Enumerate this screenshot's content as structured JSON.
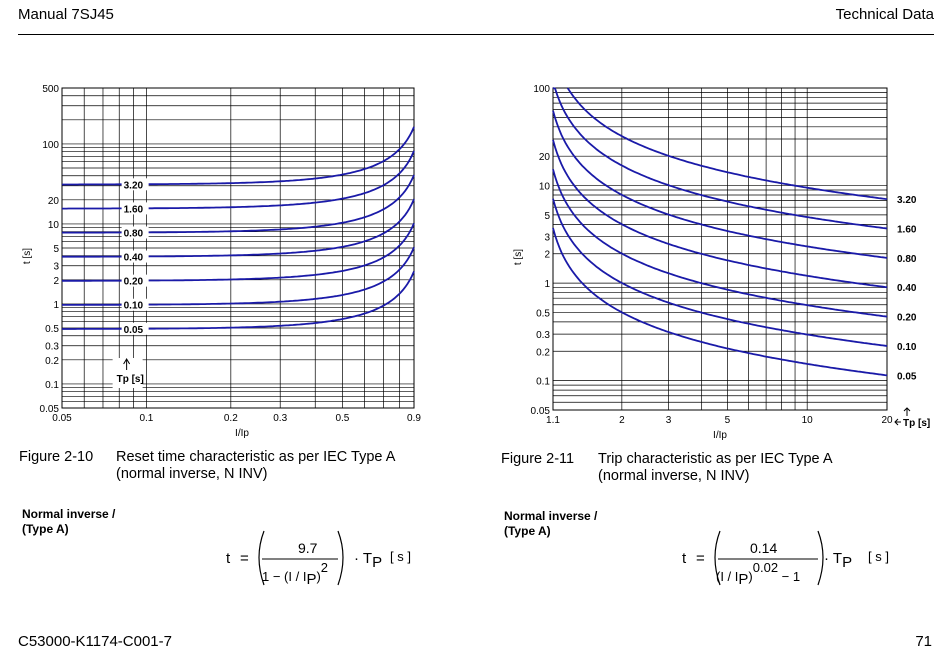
{
  "header": {
    "left": "Manual 7SJ45",
    "right": "Technical Data"
  },
  "footer": {
    "left": "C53000-K1174-C001-7",
    "right": "71"
  },
  "figures": [
    {
      "number": "Figure 2-10",
      "title_line1": "Reset time characteristic as per IEC Type A",
      "title_line2": "(normal inverse, N INV)",
      "label_line1": "Normal inverse /",
      "label_line2": "(Type A)",
      "formula": {
        "lhs": "t",
        "numerator": "9.7",
        "denominator": "1 − (I/IP)2",
        "tp": "TP",
        "unit": "[s]"
      }
    },
    {
      "number": "Figure 2-11",
      "title_line1": "Trip characteristic as per IEC Type A",
      "title_line2": "(normal inverse, N INV)",
      "label_line1": "Normal inverse /",
      "label_line2": "(Type A)",
      "formula": {
        "lhs": "t",
        "numerator": "0.14",
        "denominator": "(I/IP)0.02 − 1",
        "tp": "TP",
        "unit": "[s]"
      }
    }
  ],
  "chart_data": [
    {
      "type": "line",
      "title": "",
      "xlabel": "I/Ip",
      "ylabel": "t [s]",
      "x_scale": "log",
      "y_scale": "log",
      "xlim": [
        0.05,
        0.9
      ],
      "ylim": [
        0.05,
        500
      ],
      "x_ticks": [
        "0.05",
        "0.1",
        "0.2",
        "0.3",
        "0.5",
        "0.9"
      ],
      "y_ticks": [
        "500",
        "100",
        "20",
        "10",
        "5",
        "3",
        "2",
        "1",
        "0.5",
        "0.3",
        "0.2",
        "0.1",
        "0.05"
      ],
      "param_label": "Tp [s]",
      "grid": true,
      "formula": "t = 9.7 / (1 - (I/Ip)^2) * Tp",
      "series": [
        {
          "name": "0.05",
          "tp": 0.05
        },
        {
          "name": "0.10",
          "tp": 0.1
        },
        {
          "name": "0.20",
          "tp": 0.2
        },
        {
          "name": "0.40",
          "tp": 0.4
        },
        {
          "name": "0.80",
          "tp": 0.8
        },
        {
          "name": "1.60",
          "tp": 1.6
        },
        {
          "name": "3.20",
          "tp": 3.2
        }
      ]
    },
    {
      "type": "line",
      "title": "",
      "xlabel": "I/Ip",
      "ylabel": "t [s]",
      "x_scale": "log",
      "y_scale": "log",
      "xlim": [
        1.1,
        20
      ],
      "ylim": [
        0.05,
        100
      ],
      "x_ticks": [
        "1.1",
        "2",
        "3",
        "5",
        "10",
        "20"
      ],
      "y_ticks": [
        "100",
        "20",
        "10",
        "5",
        "3",
        "2",
        "1",
        "0.5",
        "0.3",
        "0.2",
        "0.1",
        "0.05"
      ],
      "param_label": "Tp [s]",
      "grid": true,
      "formula": "t = 0.14 / ((I/Ip)^0.02 - 1) * Tp",
      "series": [
        {
          "name": "0.05",
          "tp": 0.05
        },
        {
          "name": "0.10",
          "tp": 0.1
        },
        {
          "name": "0.20",
          "tp": 0.2
        },
        {
          "name": "0.40",
          "tp": 0.4
        },
        {
          "name": "0.80",
          "tp": 0.8
        },
        {
          "name": "1.60",
          "tp": 1.6
        },
        {
          "name": "3.20",
          "tp": 3.2
        }
      ]
    }
  ],
  "colors": {
    "curve": "#1a1aa8",
    "grid": "#000000"
  }
}
